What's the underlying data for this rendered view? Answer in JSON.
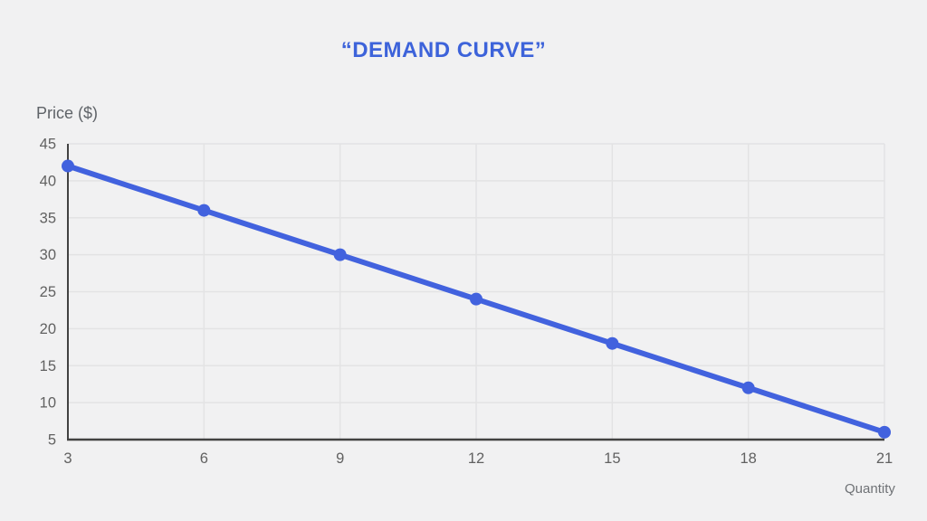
{
  "page": {
    "background_color": "#f1f1f2"
  },
  "header": {
    "title": "“DEMAND CURVE”",
    "title_color": "#3d63da"
  },
  "chart_data": {
    "type": "line",
    "title": "“DEMAND CURVE”",
    "xlabel": "Quantity",
    "ylabel": "Price ($)",
    "x": [
      3,
      6,
      9,
      12,
      15,
      18,
      21
    ],
    "series": [
      {
        "name": "Price",
        "values": [
          42,
          36,
          30,
          24,
          18,
          12,
          6
        ],
        "color": "#4262de",
        "line_width": 6,
        "point_radius": 7
      }
    ],
    "xlim": [
      3,
      21
    ],
    "ylim": [
      5,
      45
    ],
    "x_ticks": [
      3,
      6,
      9,
      12,
      15,
      18,
      21
    ],
    "y_ticks": [
      5,
      10,
      15,
      20,
      25,
      30,
      35,
      40,
      45
    ],
    "grid": true,
    "legend": "none",
    "colors": {
      "grid": "#e3e3e4",
      "axis": "#424242",
      "tick_label": "#616161"
    }
  }
}
